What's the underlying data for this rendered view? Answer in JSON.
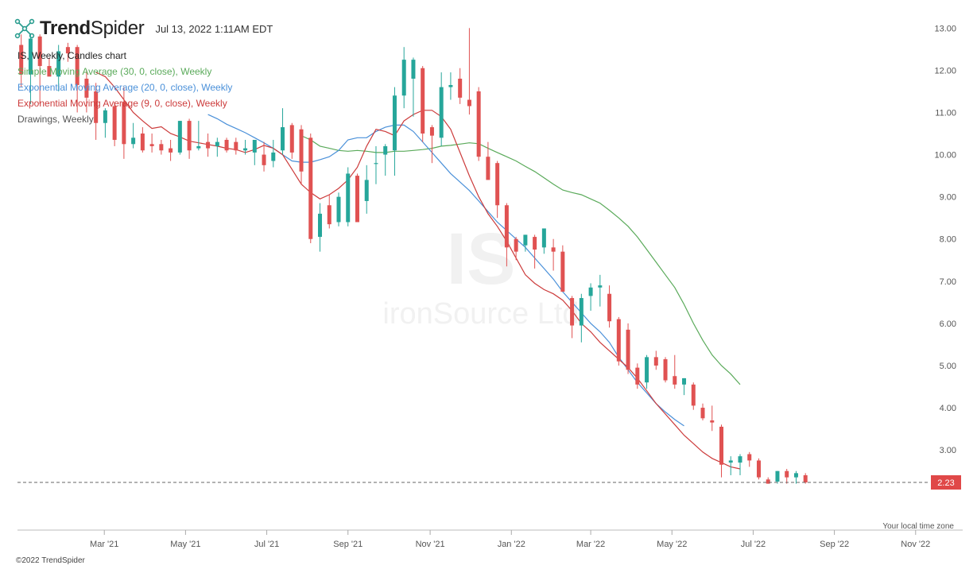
{
  "header": {
    "brand_bold": "Trend",
    "brand_light": "Spider",
    "timestamp": "Jul 13, 2022 1:11AM EDT"
  },
  "legend": {
    "chart_label": "IS, Weekly, Candles chart",
    "sma_label": "Simple Moving Average (30, 0, close), Weekly",
    "ema20_label": "Exponential Moving Average (20, 0, close), Weekly",
    "ema9_label": "Exponential Moving Average (9, 0, close), Weekly",
    "drawings_label": "Drawings, Weekly"
  },
  "watermark": {
    "ticker": "IS",
    "company": "ironSource Ltd"
  },
  "footer": {
    "copyright": "©2022 TrendSpider",
    "timezone_note": "Your local time zone"
  },
  "colors": {
    "up": "#26a69a",
    "down": "#e05252",
    "sma": "#5aaa5a",
    "ema20": "#4a90d9",
    "ema9": "#cc3b3b",
    "price_tag": "#e04848"
  },
  "chart_data": {
    "type": "candlestick",
    "symbol": "IS",
    "interval": "Weekly",
    "current_price": 2.23,
    "current_price_label": "2.23",
    "ylim": [
      1.1,
      13.1
    ],
    "yticks": [
      "13.00",
      "12.00",
      "11.00",
      "10.00",
      "9.00",
      "8.00",
      "7.00",
      "6.00",
      "5.00",
      "4.00",
      "3.00"
    ],
    "yticks_values": [
      13,
      12,
      11,
      10,
      9,
      8,
      7,
      6,
      5,
      4,
      3
    ],
    "xticks": [
      "Mar '21",
      "May '21",
      "Jul '21",
      "Sep '21",
      "Nov '21",
      "Jan '22",
      "Mar '22",
      "May '22",
      "Jul '22",
      "Sep '22",
      "Nov '22"
    ],
    "xtick_weeks": [
      8.9,
      17.6,
      26.3,
      35,
      43.8,
      52.5,
      61,
      69.7,
      78.4,
      87.1,
      95.8
    ],
    "xlim": [
      -0.4,
      96.5
    ],
    "candles": [
      {
        "o": 12.6,
        "h": 12.85,
        "l": 11.6,
        "c": 11.9
      },
      {
        "o": 11.9,
        "h": 12.85,
        "l": 11.2,
        "c": 12.75
      },
      {
        "o": 12.8,
        "h": 12.85,
        "l": 11.2,
        "c": 12.1
      },
      {
        "o": 12.1,
        "h": 12.3,
        "l": 11.9,
        "c": 11.85
      },
      {
        "o": 11.85,
        "h": 12.6,
        "l": 11.5,
        "c": 12.45
      },
      {
        "o": 12.55,
        "h": 12.65,
        "l": 12.2,
        "c": 12.4
      },
      {
        "o": 12.55,
        "h": 12.6,
        "l": 11.0,
        "c": 11.65
      },
      {
        "o": 11.8,
        "h": 12.0,
        "l": 11.0,
        "c": 11.35
      },
      {
        "o": 11.5,
        "h": 11.7,
        "l": 10.35,
        "c": 10.75
      },
      {
        "o": 10.75,
        "h": 11.1,
        "l": 10.4,
        "c": 11.05
      },
      {
        "o": 11.15,
        "h": 11.25,
        "l": 10.2,
        "c": 10.35
      },
      {
        "o": 11.25,
        "h": 11.6,
        "l": 9.9,
        "c": 10.25
      },
      {
        "o": 10.25,
        "h": 10.75,
        "l": 10.15,
        "c": 10.4
      },
      {
        "o": 10.5,
        "h": 10.65,
        "l": 10.05,
        "c": 10.1
      },
      {
        "o": 10.25,
        "h": 10.5,
        "l": 10.05,
        "c": 10.2
      },
      {
        "o": 10.25,
        "h": 10.35,
        "l": 10.0,
        "c": 10.1
      },
      {
        "o": 10.15,
        "h": 10.35,
        "l": 9.85,
        "c": 10.05
      },
      {
        "o": 10.05,
        "h": 10.8,
        "l": 10.0,
        "c": 10.8
      },
      {
        "o": 10.8,
        "h": 10.85,
        "l": 9.9,
        "c": 10.1
      },
      {
        "o": 10.15,
        "h": 10.8,
        "l": 10.1,
        "c": 10.2
      },
      {
        "o": 10.3,
        "h": 10.5,
        "l": 9.95,
        "c": 10.15
      },
      {
        "o": 10.2,
        "h": 10.4,
        "l": 9.95,
        "c": 10.3
      },
      {
        "o": 10.35,
        "h": 10.4,
        "l": 10.05,
        "c": 10.1
      },
      {
        "o": 10.3,
        "h": 10.4,
        "l": 10.0,
        "c": 10.1
      },
      {
        "o": 10.1,
        "h": 10.35,
        "l": 10.0,
        "c": 10.15
      },
      {
        "o": 10.05,
        "h": 10.25,
        "l": 9.75,
        "c": 10.35
      },
      {
        "o": 10.0,
        "h": 10.3,
        "l": 9.6,
        "c": 9.75
      },
      {
        "o": 9.85,
        "h": 10.35,
        "l": 9.7,
        "c": 10.05
      },
      {
        "o": 10.1,
        "h": 11.1,
        "l": 10.0,
        "c": 10.65
      },
      {
        "o": 10.7,
        "h": 10.75,
        "l": 9.9,
        "c": 10.05
      },
      {
        "o": 10.6,
        "h": 10.7,
        "l": 9.3,
        "c": 9.6
      },
      {
        "o": 10.4,
        "h": 10.5,
        "l": 7.9,
        "c": 8.0
      },
      {
        "o": 8.05,
        "h": 8.85,
        "l": 7.7,
        "c": 8.6
      },
      {
        "o": 8.8,
        "h": 9.05,
        "l": 8.25,
        "c": 8.35
      },
      {
        "o": 8.4,
        "h": 9.1,
        "l": 8.3,
        "c": 9.0
      },
      {
        "o": 8.4,
        "h": 9.7,
        "l": 8.3,
        "c": 9.55
      },
      {
        "o": 9.5,
        "h": 9.55,
        "l": 8.5,
        "c": 8.4
      },
      {
        "o": 8.9,
        "h": 9.75,
        "l": 8.6,
        "c": 9.4
      },
      {
        "o": 9.8,
        "h": 10.2,
        "l": 9.3,
        "c": 9.8
      },
      {
        "o": 10.0,
        "h": 10.25,
        "l": 9.5,
        "c": 10.2
      },
      {
        "o": 10.1,
        "h": 11.6,
        "l": 9.5,
        "c": 11.4
      },
      {
        "o": 11.4,
        "h": 12.55,
        "l": 11.1,
        "c": 12.25
      },
      {
        "o": 11.8,
        "h": 12.3,
        "l": 10.9,
        "c": 12.25
      },
      {
        "o": 12.05,
        "h": 12.1,
        "l": 10.3,
        "c": 10.5
      },
      {
        "o": 10.65,
        "h": 10.7,
        "l": 9.8,
        "c": 10.45
      },
      {
        "o": 10.4,
        "h": 11.95,
        "l": 10.2,
        "c": 11.6
      },
      {
        "o": 11.6,
        "h": 11.95,
        "l": 11.3,
        "c": 11.65
      },
      {
        "o": 11.8,
        "h": 12.05,
        "l": 11.2,
        "c": 11.35
      },
      {
        "o": 11.3,
        "h": 13.0,
        "l": 10.95,
        "c": 11.15
      },
      {
        "o": 11.5,
        "h": 11.6,
        "l": 9.85,
        "c": 9.95
      },
      {
        "o": 9.95,
        "h": 10.3,
        "l": 9.5,
        "c": 9.4
      },
      {
        "o": 9.8,
        "h": 9.85,
        "l": 8.5,
        "c": 8.8
      },
      {
        "o": 8.8,
        "h": 8.85,
        "l": 7.35,
        "c": 7.8
      },
      {
        "o": 8.0,
        "h": 8.05,
        "l": 7.5,
        "c": 7.7
      },
      {
        "o": 7.85,
        "h": 8.1,
        "l": 7.7,
        "c": 8.1
      },
      {
        "o": 8.05,
        "h": 8.1,
        "l": 7.3,
        "c": 7.75
      },
      {
        "o": 7.8,
        "h": 8.2,
        "l": 7.65,
        "c": 8.25
      },
      {
        "o": 7.8,
        "h": 8.0,
        "l": 7.25,
        "c": 7.7
      },
      {
        "o": 7.7,
        "h": 7.85,
        "l": 6.75,
        "c": 6.75
      },
      {
        "o": 6.6,
        "h": 6.65,
        "l": 5.65,
        "c": 5.95
      },
      {
        "o": 5.95,
        "h": 6.7,
        "l": 5.55,
        "c": 6.6
      },
      {
        "o": 6.65,
        "h": 6.95,
        "l": 6.3,
        "c": 6.85
      },
      {
        "o": 6.85,
        "h": 7.15,
        "l": 6.4,
        "c": 6.9
      },
      {
        "o": 6.7,
        "h": 6.9,
        "l": 5.9,
        "c": 6.05
      },
      {
        "o": 6.1,
        "h": 6.15,
        "l": 5.0,
        "c": 5.1
      },
      {
        "o": 5.85,
        "h": 6.0,
        "l": 4.8,
        "c": 4.9
      },
      {
        "o": 4.95,
        "h": 5.05,
        "l": 4.45,
        "c": 4.55
      },
      {
        "o": 4.6,
        "h": 5.25,
        "l": 4.45,
        "c": 5.2
      },
      {
        "o": 5.2,
        "h": 5.35,
        "l": 4.9,
        "c": 5.0
      },
      {
        "o": 5.15,
        "h": 5.2,
        "l": 4.6,
        "c": 4.65
      },
      {
        "o": 4.75,
        "h": 5.25,
        "l": 4.45,
        "c": 4.55
      },
      {
        "o": 4.55,
        "h": 4.7,
        "l": 4.3,
        "c": 4.7
      },
      {
        "o": 4.55,
        "h": 4.6,
        "l": 3.95,
        "c": 4.05
      },
      {
        "o": 4.0,
        "h": 4.1,
        "l": 3.7,
        "c": 3.75
      },
      {
        "o": 3.7,
        "h": 4.05,
        "l": 3.45,
        "c": 3.65
      },
      {
        "o": 3.55,
        "h": 3.6,
        "l": 2.35,
        "c": 2.65
      },
      {
        "o": 2.7,
        "h": 2.85,
        "l": 2.4,
        "c": 2.75
      },
      {
        "o": 2.7,
        "h": 2.9,
        "l": 2.4,
        "c": 2.85
      },
      {
        "o": 2.9,
        "h": 2.95,
        "l": 2.6,
        "c": 2.75
      },
      {
        "o": 2.75,
        "h": 2.8,
        "l": 2.3,
        "c": 2.35
      },
      {
        "o": 2.3,
        "h": 2.35,
        "l": 2.2,
        "c": 2.2
      },
      {
        "o": 2.25,
        "h": 2.5,
        "l": 2.2,
        "c": 2.5
      },
      {
        "o": 2.5,
        "h": 2.55,
        "l": 2.2,
        "c": 2.35
      },
      {
        "o": 2.35,
        "h": 2.5,
        "l": 2.2,
        "c": 2.45
      },
      {
        "o": 2.4,
        "h": 2.45,
        "l": 2.2,
        "c": 2.23
      }
    ],
    "series": [
      {
        "name": "Simple Moving Average (30, 0, close), Weekly",
        "start_index": 30,
        "values": [
          10.45,
          10.35,
          10.2,
          10.15,
          10.1,
          10.08,
          10.1,
          10.08,
          10.05,
          10.05,
          10.08,
          10.08,
          10.1,
          10.12,
          10.15,
          10.2,
          10.22,
          10.25,
          10.28,
          10.26,
          10.15,
          10.05,
          9.95,
          9.85,
          9.72,
          9.6,
          9.45,
          9.3,
          9.16,
          9.1,
          9.05,
          8.95,
          8.85,
          8.68,
          8.5,
          8.3,
          8.05,
          7.75,
          7.45,
          7.15,
          6.85,
          6.45,
          6.0,
          5.6,
          5.25,
          5.0,
          4.8,
          4.55
        ]
      },
      {
        "name": "Exponential Moving Average (20, 0, close), Weekly",
        "start_index": 20,
        "values": [
          10.95,
          10.85,
          10.72,
          10.62,
          10.52,
          10.4,
          10.28,
          10.15,
          10.0,
          9.85,
          9.82,
          9.82,
          9.88,
          9.95,
          10.1,
          10.35,
          10.4,
          10.4,
          10.55,
          10.65,
          10.7,
          10.7,
          10.55,
          10.3,
          10.05,
          9.8,
          9.55,
          9.35,
          9.15,
          8.9,
          8.65,
          8.4,
          8.2,
          8.0,
          7.8,
          7.55,
          7.3,
          7.05,
          6.75,
          6.5,
          6.25,
          6.0,
          5.8,
          5.55,
          5.2,
          4.9,
          4.6,
          4.35,
          4.1,
          3.9,
          3.72,
          3.57
        ]
      },
      {
        "name": "Exponential Moving Average (9, 0, close), Weekly",
        "start_index": 8,
        "values": [
          11.95,
          11.85,
          11.6,
          11.3,
          11.0,
          10.8,
          10.62,
          10.66,
          10.5,
          10.42,
          10.32,
          10.28,
          10.24,
          10.2,
          10.15,
          10.12,
          10.05,
          10.12,
          10.22,
          10.15,
          10.0,
          9.65,
          9.3,
          9.1,
          8.95,
          9.05,
          9.2,
          9.4,
          9.7,
          10.2,
          10.6,
          10.55,
          10.45,
          10.8,
          10.95,
          11.05,
          11.05,
          10.9,
          10.6,
          10.05,
          9.5,
          9.0,
          8.6,
          8.3,
          7.95,
          7.55,
          7.15,
          6.95,
          6.8,
          6.7,
          6.55,
          6.3,
          6.0,
          5.8,
          5.55,
          5.35,
          5.15,
          4.95,
          4.7,
          4.4,
          4.1,
          3.85,
          3.6,
          3.35,
          3.15,
          2.95,
          2.8,
          2.7,
          2.6,
          2.55
        ]
      }
    ]
  }
}
